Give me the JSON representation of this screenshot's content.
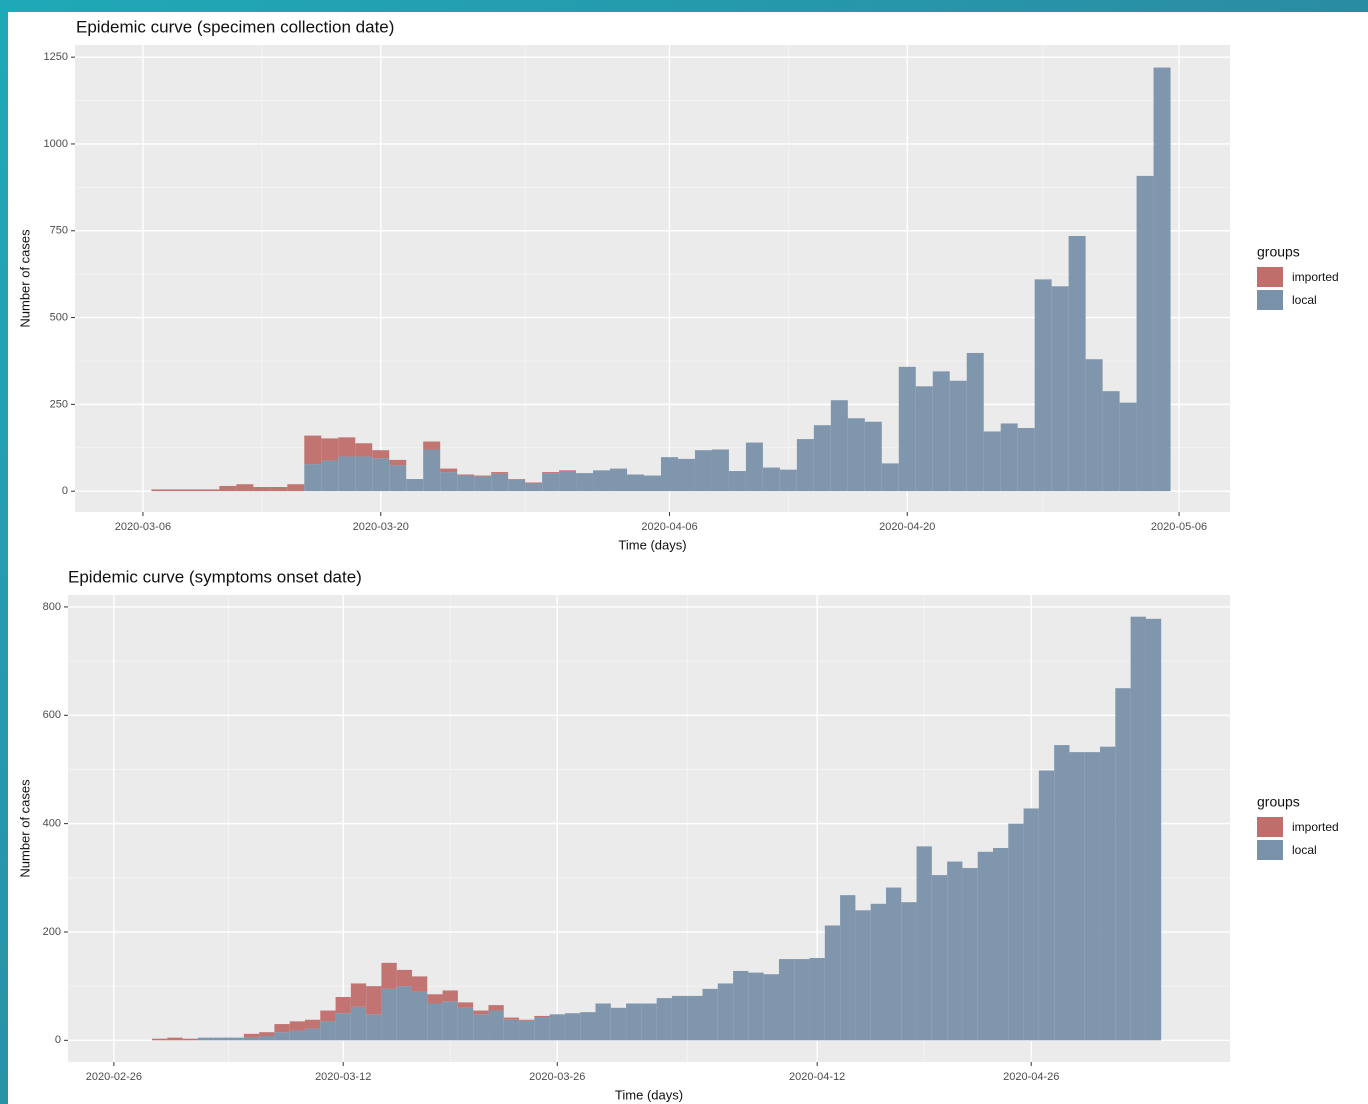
{
  "chart_data": [
    {
      "type": "bar",
      "stacked": true,
      "title": "Epidemic curve (specimen collection date)",
      "x_label": "Time (days)",
      "y_label": "Number of cases",
      "legend_title": "groups",
      "legend": "right",
      "grid": true,
      "x": [
        "2020-03-07",
        "2020-03-08",
        "2020-03-09",
        "2020-03-10",
        "2020-03-11",
        "2020-03-12",
        "2020-03-13",
        "2020-03-14",
        "2020-03-15",
        "2020-03-16",
        "2020-03-17",
        "2020-03-18",
        "2020-03-19",
        "2020-03-20",
        "2020-03-21",
        "2020-03-22",
        "2020-03-23",
        "2020-03-24",
        "2020-03-25",
        "2020-03-26",
        "2020-03-27",
        "2020-03-28",
        "2020-03-29",
        "2020-03-30",
        "2020-03-31",
        "2020-04-01",
        "2020-04-02",
        "2020-04-03",
        "2020-04-04",
        "2020-04-05",
        "2020-04-06",
        "2020-04-07",
        "2020-04-08",
        "2020-04-09",
        "2020-04-10",
        "2020-04-11",
        "2020-04-12",
        "2020-04-13",
        "2020-04-14",
        "2020-04-15",
        "2020-04-16",
        "2020-04-17",
        "2020-04-18",
        "2020-04-19",
        "2020-04-20",
        "2020-04-21",
        "2020-04-22",
        "2020-04-23",
        "2020-04-24",
        "2020-04-25",
        "2020-04-26",
        "2020-04-27",
        "2020-04-28",
        "2020-04-29",
        "2020-04-30",
        "2020-05-01",
        "2020-05-02",
        "2020-05-03",
        "2020-05-04",
        "2020-05-05"
      ],
      "series": [
        {
          "name": "imported",
          "color": "#bf6e6c",
          "values": [
            5,
            5,
            5,
            5,
            15,
            20,
            12,
            12,
            20,
            82,
            64,
            55,
            38,
            23,
            15,
            0,
            23,
            10,
            3,
            3,
            5,
            2,
            3,
            3,
            2,
            0,
            0,
            0,
            0,
            0,
            0,
            0,
            0,
            0,
            0,
            0,
            0,
            0,
            0,
            0,
            0,
            0,
            0,
            0,
            0,
            0,
            0,
            0,
            0,
            0,
            0,
            0,
            0,
            0,
            0,
            0,
            0,
            0,
            0,
            0
          ]
        },
        {
          "name": "local",
          "color": "#7a91aa",
          "values": [
            0,
            0,
            0,
            0,
            0,
            0,
            0,
            0,
            0,
            78,
            88,
            100,
            100,
            95,
            75,
            35,
            120,
            55,
            45,
            42,
            50,
            33,
            22,
            52,
            58,
            52,
            60,
            65,
            48,
            45,
            98,
            93,
            118,
            120,
            58,
            140,
            68,
            62,
            150,
            190,
            262,
            210,
            200,
            80,
            358,
            302,
            345,
            318,
            398,
            172,
            195,
            182,
            610,
            590,
            735,
            380,
            288,
            255,
            908,
            1220
          ]
        }
      ],
      "xlim": [
        "2020-03-02",
        "2020-05-09"
      ],
      "xticks": [
        "2020-03-06",
        "2020-03-20",
        "2020-04-06",
        "2020-04-20",
        "2020-05-06"
      ],
      "ylim": [
        -60,
        1285
      ],
      "yticks": [
        0,
        250,
        500,
        750,
        1000,
        1250
      ]
    },
    {
      "type": "bar",
      "stacked": true,
      "title": "Epidemic curve (symptoms onset date)",
      "x_label": "Time (days)",
      "y_label": "Number of cases",
      "legend_title": "groups",
      "legend": "right",
      "grid": true,
      "x": [
        "2020-02-29",
        "2020-03-01",
        "2020-03-02",
        "2020-03-03",
        "2020-03-04",
        "2020-03-05",
        "2020-03-06",
        "2020-03-07",
        "2020-03-08",
        "2020-03-09",
        "2020-03-10",
        "2020-03-11",
        "2020-03-12",
        "2020-03-13",
        "2020-03-14",
        "2020-03-15",
        "2020-03-16",
        "2020-03-17",
        "2020-03-18",
        "2020-03-19",
        "2020-03-20",
        "2020-03-21",
        "2020-03-22",
        "2020-03-23",
        "2020-03-24",
        "2020-03-25",
        "2020-03-26",
        "2020-03-27",
        "2020-03-28",
        "2020-03-29",
        "2020-03-30",
        "2020-03-31",
        "2020-04-01",
        "2020-04-02",
        "2020-04-03",
        "2020-04-04",
        "2020-04-05",
        "2020-04-06",
        "2020-04-07",
        "2020-04-08",
        "2020-04-09",
        "2020-04-10",
        "2020-04-11",
        "2020-04-12",
        "2020-04-13",
        "2020-04-14",
        "2020-04-15",
        "2020-04-16",
        "2020-04-17",
        "2020-04-18",
        "2020-04-19",
        "2020-04-20",
        "2020-04-21",
        "2020-04-22",
        "2020-04-23",
        "2020-04-24",
        "2020-04-25",
        "2020-04-26",
        "2020-04-27",
        "2020-04-28",
        "2020-04-29",
        "2020-04-30",
        "2020-05-01",
        "2020-05-02",
        "2020-05-03",
        "2020-05-04"
      ],
      "series": [
        {
          "name": "imported",
          "color": "#bf6e6c",
          "values": [
            3,
            5,
            3,
            0,
            0,
            0,
            7,
            7,
            15,
            17,
            16,
            20,
            30,
            43,
            52,
            48,
            30,
            28,
            17,
            20,
            10,
            7,
            10,
            4,
            2,
            2,
            0,
            0,
            0,
            0,
            0,
            0,
            0,
            0,
            0,
            0,
            0,
            0,
            0,
            0,
            0,
            0,
            0,
            0,
            0,
            0,
            0,
            0,
            0,
            0,
            0,
            0,
            0,
            0,
            0,
            0,
            0,
            0,
            0,
            0,
            0,
            0,
            0,
            0,
            0,
            0
          ]
        },
        {
          "name": "local",
          "color": "#7a91aa",
          "values": [
            0,
            0,
            0,
            5,
            5,
            5,
            5,
            8,
            15,
            18,
            22,
            35,
            50,
            62,
            48,
            95,
            100,
            90,
            68,
            72,
            60,
            48,
            55,
            38,
            36,
            43,
            48,
            50,
            52,
            68,
            60,
            68,
            68,
            78,
            82,
            82,
            95,
            105,
            128,
            125,
            122,
            150,
            150,
            152,
            212,
            268,
            240,
            252,
            282,
            255,
            358,
            305,
            330,
            318,
            348,
            355,
            400,
            428,
            498,
            545,
            532,
            532,
            542,
            650,
            782,
            778
          ]
        }
      ],
      "xlim": [
        "2020-02-23",
        "2020-05-09"
      ],
      "xticks": [
        "2020-02-26",
        "2020-03-12",
        "2020-03-26",
        "2020-04-12",
        "2020-04-26"
      ],
      "ylim": [
        -40,
        822
      ],
      "yticks": [
        0,
        200,
        400,
        600,
        800
      ]
    }
  ]
}
